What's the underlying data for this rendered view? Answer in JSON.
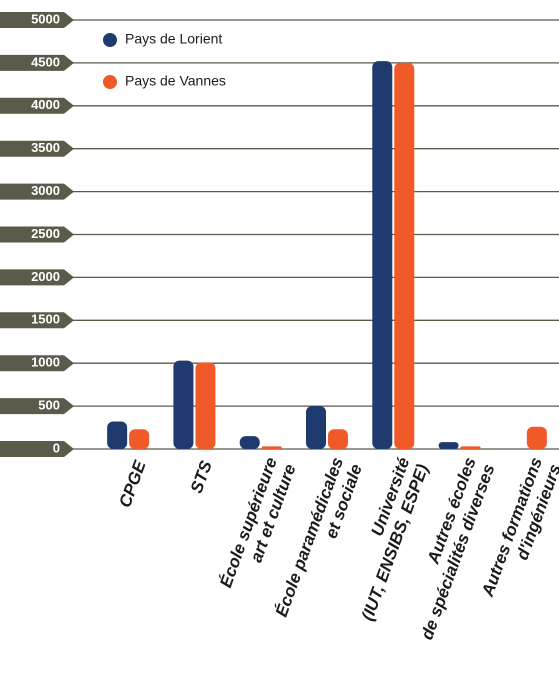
{
  "chart_data": {
    "type": "bar",
    "categories": [
      [
        "CPGE"
      ],
      [
        "STS"
      ],
      [
        "École supérieure",
        "art et culture"
      ],
      [
        "École paramédicales",
        "et sociale"
      ],
      [
        "Université",
        "(IUT, ENSIBS, ESPE)"
      ],
      [
        "Autres écoles",
        "de spécialités diverses"
      ],
      [
        "Autres formations",
        "d'ingénieurs"
      ]
    ],
    "series": [
      {
        "name": "Pays de Lorient",
        "color": "#1f3a6e",
        "values": [
          320,
          1030,
          150,
          500,
          4520,
          80,
          0
        ]
      },
      {
        "name": "Pays de Vannes",
        "color": "#f05a28",
        "values": [
          230,
          1010,
          30,
          230,
          4500,
          30,
          260
        ]
      }
    ],
    "ylim": [
      0,
      5000
    ],
    "yticks": [
      0,
      500,
      1000,
      1500,
      2000,
      2500,
      3000,
      3500,
      4000,
      4500,
      5000
    ],
    "grid": true,
    "legend": "top-left"
  }
}
